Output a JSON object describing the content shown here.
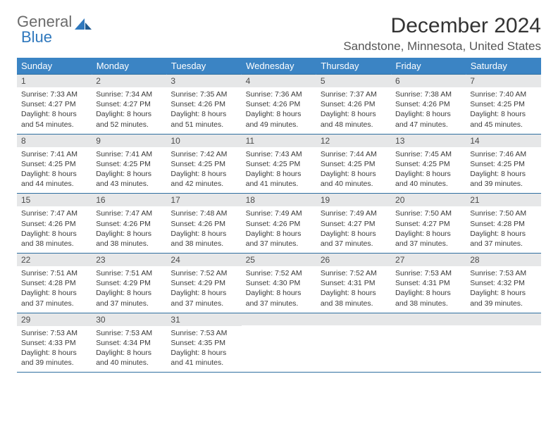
{
  "logo": {
    "word1": "General",
    "word2": "Blue"
  },
  "title": "December 2024",
  "location": "Sandstone, Minnesota, United States",
  "colors": {
    "header_bg": "#3b84c4",
    "header_text": "#ffffff",
    "daynum_bg": "#e6e7e8",
    "row_border": "#2f6fa0",
    "logo_gray": "#6b6b6b",
    "logo_blue": "#2f78bd"
  },
  "daysOfWeek": [
    "Sunday",
    "Monday",
    "Tuesday",
    "Wednesday",
    "Thursday",
    "Friday",
    "Saturday"
  ],
  "weeks": [
    [
      {
        "n": "1",
        "sunrise": "7:33 AM",
        "sunset": "4:27 PM",
        "daylight": "8 hours and 54 minutes."
      },
      {
        "n": "2",
        "sunrise": "7:34 AM",
        "sunset": "4:27 PM",
        "daylight": "8 hours and 52 minutes."
      },
      {
        "n": "3",
        "sunrise": "7:35 AM",
        "sunset": "4:26 PM",
        "daylight": "8 hours and 51 minutes."
      },
      {
        "n": "4",
        "sunrise": "7:36 AM",
        "sunset": "4:26 PM",
        "daylight": "8 hours and 49 minutes."
      },
      {
        "n": "5",
        "sunrise": "7:37 AM",
        "sunset": "4:26 PM",
        "daylight": "8 hours and 48 minutes."
      },
      {
        "n": "6",
        "sunrise": "7:38 AM",
        "sunset": "4:26 PM",
        "daylight": "8 hours and 47 minutes."
      },
      {
        "n": "7",
        "sunrise": "7:40 AM",
        "sunset": "4:25 PM",
        "daylight": "8 hours and 45 minutes."
      }
    ],
    [
      {
        "n": "8",
        "sunrise": "7:41 AM",
        "sunset": "4:25 PM",
        "daylight": "8 hours and 44 minutes."
      },
      {
        "n": "9",
        "sunrise": "7:41 AM",
        "sunset": "4:25 PM",
        "daylight": "8 hours and 43 minutes."
      },
      {
        "n": "10",
        "sunrise": "7:42 AM",
        "sunset": "4:25 PM",
        "daylight": "8 hours and 42 minutes."
      },
      {
        "n": "11",
        "sunrise": "7:43 AM",
        "sunset": "4:25 PM",
        "daylight": "8 hours and 41 minutes."
      },
      {
        "n": "12",
        "sunrise": "7:44 AM",
        "sunset": "4:25 PM",
        "daylight": "8 hours and 40 minutes."
      },
      {
        "n": "13",
        "sunrise": "7:45 AM",
        "sunset": "4:25 PM",
        "daylight": "8 hours and 40 minutes."
      },
      {
        "n": "14",
        "sunrise": "7:46 AM",
        "sunset": "4:25 PM",
        "daylight": "8 hours and 39 minutes."
      }
    ],
    [
      {
        "n": "15",
        "sunrise": "7:47 AM",
        "sunset": "4:26 PM",
        "daylight": "8 hours and 38 minutes."
      },
      {
        "n": "16",
        "sunrise": "7:47 AM",
        "sunset": "4:26 PM",
        "daylight": "8 hours and 38 minutes."
      },
      {
        "n": "17",
        "sunrise": "7:48 AM",
        "sunset": "4:26 PM",
        "daylight": "8 hours and 38 minutes."
      },
      {
        "n": "18",
        "sunrise": "7:49 AM",
        "sunset": "4:26 PM",
        "daylight": "8 hours and 37 minutes."
      },
      {
        "n": "19",
        "sunrise": "7:49 AM",
        "sunset": "4:27 PM",
        "daylight": "8 hours and 37 minutes."
      },
      {
        "n": "20",
        "sunrise": "7:50 AM",
        "sunset": "4:27 PM",
        "daylight": "8 hours and 37 minutes."
      },
      {
        "n": "21",
        "sunrise": "7:50 AM",
        "sunset": "4:28 PM",
        "daylight": "8 hours and 37 minutes."
      }
    ],
    [
      {
        "n": "22",
        "sunrise": "7:51 AM",
        "sunset": "4:28 PM",
        "daylight": "8 hours and 37 minutes."
      },
      {
        "n": "23",
        "sunrise": "7:51 AM",
        "sunset": "4:29 PM",
        "daylight": "8 hours and 37 minutes."
      },
      {
        "n": "24",
        "sunrise": "7:52 AM",
        "sunset": "4:29 PM",
        "daylight": "8 hours and 37 minutes."
      },
      {
        "n": "25",
        "sunrise": "7:52 AM",
        "sunset": "4:30 PM",
        "daylight": "8 hours and 37 minutes."
      },
      {
        "n": "26",
        "sunrise": "7:52 AM",
        "sunset": "4:31 PM",
        "daylight": "8 hours and 38 minutes."
      },
      {
        "n": "27",
        "sunrise": "7:53 AM",
        "sunset": "4:31 PM",
        "daylight": "8 hours and 38 minutes."
      },
      {
        "n": "28",
        "sunrise": "7:53 AM",
        "sunset": "4:32 PM",
        "daylight": "8 hours and 39 minutes."
      }
    ],
    [
      {
        "n": "29",
        "sunrise": "7:53 AM",
        "sunset": "4:33 PM",
        "daylight": "8 hours and 39 minutes."
      },
      {
        "n": "30",
        "sunrise": "7:53 AM",
        "sunset": "4:34 PM",
        "daylight": "8 hours and 40 minutes."
      },
      {
        "n": "31",
        "sunrise": "7:53 AM",
        "sunset": "4:35 PM",
        "daylight": "8 hours and 41 minutes."
      },
      {
        "empty": true
      },
      {
        "empty": true
      },
      {
        "empty": true
      },
      {
        "empty": true
      }
    ]
  ],
  "labels": {
    "sunrise": "Sunrise:",
    "sunset": "Sunset:",
    "daylight": "Daylight:"
  }
}
